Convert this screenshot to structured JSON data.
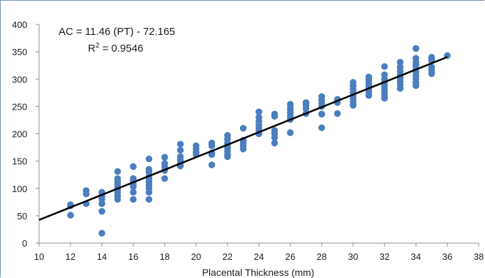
{
  "chart_data": {
    "type": "scatter",
    "title": "",
    "xlabel": "Placental Thickness (mm)",
    "ylabel": "",
    "xlim": [
      10,
      38
    ],
    "ylim": [
      0,
      400
    ],
    "x_ticks": [
      10,
      12,
      14,
      16,
      18,
      20,
      22,
      24,
      26,
      28,
      30,
      32,
      34,
      36,
      38
    ],
    "y_ticks": [
      0,
      50,
      100,
      150,
      200,
      250,
      300,
      350,
      400
    ],
    "grid": false,
    "legend": "none",
    "colors": {
      "points": "#4a7ebf",
      "trendline": "#000000"
    },
    "annotation": {
      "equation": "AC = 11.46 (PT) - 72.165",
      "r2_prefix": "R",
      "r2_sup": "2",
      "r2_value": " = 0.9546"
    },
    "trendline": {
      "slope": 11.46,
      "intercept": -72.165,
      "x_range": [
        10,
        36
      ]
    },
    "points": [
      [
        12,
        70
      ],
      [
        12,
        68
      ],
      [
        12,
        51
      ],
      [
        13,
        96
      ],
      [
        13,
        90
      ],
      [
        13,
        72
      ],
      [
        14,
        93
      ],
      [
        14,
        86
      ],
      [
        14,
        80
      ],
      [
        14,
        72
      ],
      [
        14,
        58
      ],
      [
        14,
        18
      ],
      [
        15,
        131
      ],
      [
        15,
        118
      ],
      [
        15,
        113
      ],
      [
        15,
        108
      ],
      [
        15,
        103
      ],
      [
        15,
        98
      ],
      [
        15,
        93
      ],
      [
        15,
        86
      ],
      [
        15,
        80
      ],
      [
        16,
        140
      ],
      [
        16,
        118
      ],
      [
        16,
        113
      ],
      [
        16,
        108
      ],
      [
        16,
        103
      ],
      [
        16,
        93
      ],
      [
        16,
        80
      ],
      [
        17,
        154
      ],
      [
        17,
        135
      ],
      [
        17,
        130
      ],
      [
        17,
        122
      ],
      [
        17,
        118
      ],
      [
        17,
        112
      ],
      [
        17,
        106
      ],
      [
        17,
        100
      ],
      [
        17,
        93
      ],
      [
        17,
        80
      ],
      [
        18,
        157
      ],
      [
        18,
        146
      ],
      [
        18,
        140
      ],
      [
        18,
        133
      ],
      [
        18,
        118
      ],
      [
        19,
        181
      ],
      [
        19,
        170
      ],
      [
        19,
        158
      ],
      [
        19,
        152
      ],
      [
        19,
        145
      ],
      [
        19,
        141
      ],
      [
        20,
        178
      ],
      [
        20,
        172
      ],
      [
        20,
        166
      ],
      [
        20,
        162
      ],
      [
        21,
        183
      ],
      [
        21,
        178
      ],
      [
        21,
        165
      ],
      [
        21,
        162
      ],
      [
        21,
        143
      ],
      [
        22,
        197
      ],
      [
        22,
        190
      ],
      [
        22,
        183
      ],
      [
        22,
        178
      ],
      [
        22,
        174
      ],
      [
        22,
        168
      ],
      [
        22,
        162
      ],
      [
        22,
        158
      ],
      [
        23,
        210
      ],
      [
        23,
        188
      ],
      [
        23,
        183
      ],
      [
        23,
        178
      ],
      [
        23,
        172
      ],
      [
        24,
        240
      ],
      [
        24,
        230
      ],
      [
        24,
        223
      ],
      [
        24,
        216
      ],
      [
        24,
        210
      ],
      [
        24,
        204
      ],
      [
        24,
        200
      ],
      [
        25,
        236
      ],
      [
        25,
        232
      ],
      [
        25,
        206
      ],
      [
        25,
        200
      ],
      [
        25,
        193
      ],
      [
        25,
        183
      ],
      [
        26,
        254
      ],
      [
        26,
        248
      ],
      [
        26,
        244
      ],
      [
        26,
        238
      ],
      [
        26,
        232
      ],
      [
        26,
        226
      ],
      [
        26,
        202
      ],
      [
        27,
        257
      ],
      [
        27,
        252
      ],
      [
        27,
        246
      ],
      [
        27,
        237
      ],
      [
        28,
        268
      ],
      [
        28,
        262
      ],
      [
        28,
        256
      ],
      [
        28,
        250
      ],
      [
        28,
        236
      ],
      [
        28,
        211
      ],
      [
        29,
        263
      ],
      [
        29,
        257
      ],
      [
        29,
        237
      ],
      [
        30,
        294
      ],
      [
        30,
        288
      ],
      [
        30,
        282
      ],
      [
        30,
        276
      ],
      [
        30,
        270
      ],
      [
        30,
        264
      ],
      [
        30,
        258
      ],
      [
        30,
        252
      ],
      [
        31,
        304
      ],
      [
        31,
        300
      ],
      [
        31,
        294
      ],
      [
        31,
        288
      ],
      [
        31,
        282
      ],
      [
        31,
        276
      ],
      [
        31,
        270
      ],
      [
        32,
        323
      ],
      [
        32,
        308
      ],
      [
        32,
        300
      ],
      [
        32,
        294
      ],
      [
        32,
        288
      ],
      [
        32,
        282
      ],
      [
        32,
        276
      ],
      [
        32,
        270
      ],
      [
        32,
        265
      ],
      [
        33,
        331
      ],
      [
        33,
        322
      ],
      [
        33,
        315
      ],
      [
        33,
        308
      ],
      [
        33,
        302
      ],
      [
        33,
        296
      ],
      [
        33,
        290
      ],
      [
        33,
        283
      ],
      [
        34,
        356
      ],
      [
        34,
        338
      ],
      [
        34,
        331
      ],
      [
        34,
        325
      ],
      [
        34,
        319
      ],
      [
        34,
        313
      ],
      [
        34,
        306
      ],
      [
        34,
        300
      ],
      [
        34,
        294
      ],
      [
        34,
        288
      ],
      [
        35,
        340
      ],
      [
        35,
        334
      ],
      [
        35,
        322
      ],
      [
        35,
        316
      ],
      [
        35,
        310
      ],
      [
        36,
        343
      ]
    ]
  }
}
